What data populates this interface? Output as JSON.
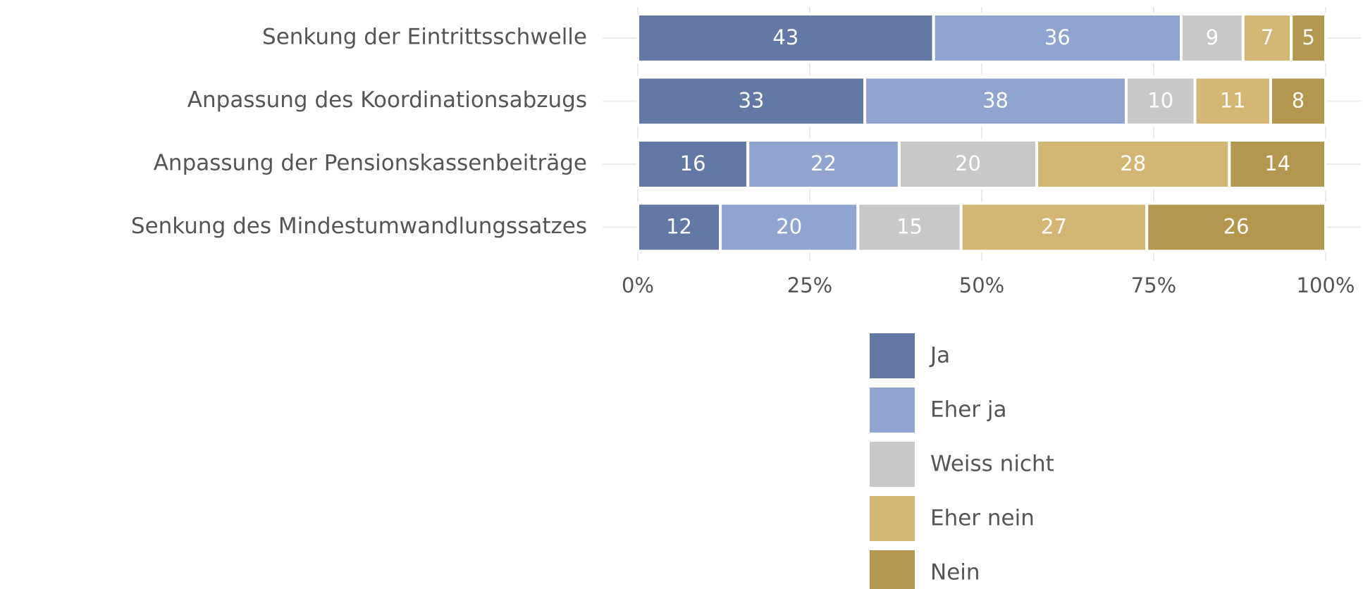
{
  "chart_data": {
    "type": "bar",
    "orientation": "horizontal",
    "stacked": true,
    "categories": [
      "Senkung der Eintrittsschwelle",
      "Anpassung des Koordinationsabzugs",
      "Anpassung der Pensionskassenbeiträge",
      "Senkung des Mindestumwandlungssatzes"
    ],
    "series": [
      {
        "name": "Ja",
        "color": "#6279a5",
        "values": [
          43,
          33,
          16,
          12
        ]
      },
      {
        "name": "Eher ja",
        "color": "#8fa5cf",
        "values": [
          36,
          38,
          22,
          20
        ]
      },
      {
        "name": "Weiss nicht",
        "color": "#c8c8c8",
        "values": [
          9,
          10,
          20,
          15
        ]
      },
      {
        "name": "Eher nein",
        "color": "#d3b574",
        "values": [
          7,
          11,
          28,
          27
        ]
      },
      {
        "name": "Nein",
        "color": "#b3974f",
        "values": [
          5,
          8,
          14,
          26
        ]
      }
    ],
    "xlim": [
      0,
      100
    ],
    "xticks": [
      {
        "value": 0,
        "label": "0%"
      },
      {
        "value": 25,
        "label": "25%"
      },
      {
        "value": 50,
        "label": "50%"
      },
      {
        "value": 75,
        "label": "75%"
      },
      {
        "value": 100,
        "label": "100%"
      }
    ],
    "grid": true,
    "legend": "bottom"
  }
}
